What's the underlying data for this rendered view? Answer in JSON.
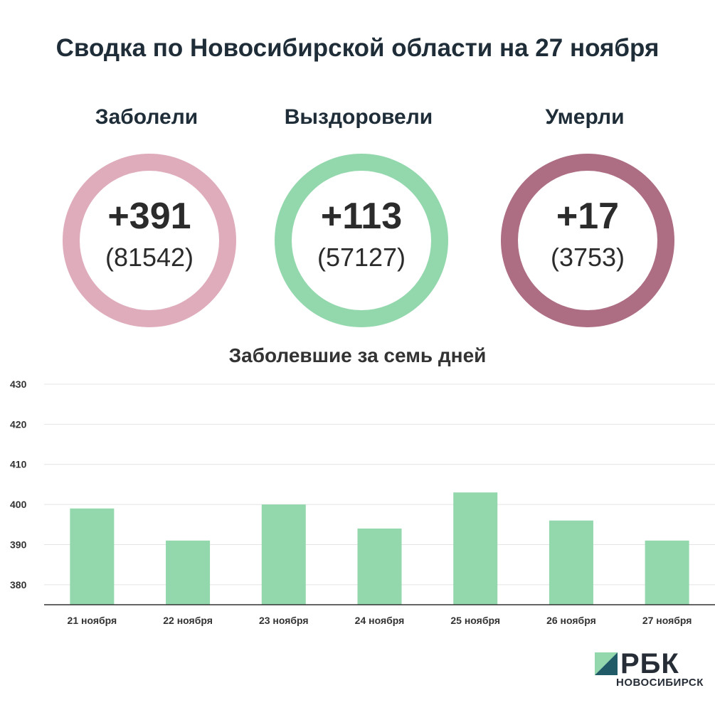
{
  "title": "Сводка по Новосибирской области на 27 ноября",
  "stats": [
    {
      "label": "Заболели",
      "delta": "+391",
      "total": "(81542)",
      "color": "#dfacbb"
    },
    {
      "label": "Выздоровели",
      "delta": "+113",
      "total": "(57127)",
      "color": "#93d7ad"
    },
    {
      "label": "Умерли",
      "delta": "+17",
      "total": "(3753)",
      "color": "#ad6e83"
    }
  ],
  "chart_data": {
    "type": "bar",
    "title": "Заболевшие за семь дней",
    "categories": [
      "21 ноября",
      "22 ноября",
      "23 ноября",
      "24 ноября",
      "25 ноября",
      "26 ноября",
      "27 ноября"
    ],
    "values": [
      399,
      391,
      400,
      394,
      403,
      396,
      391
    ],
    "yticks": [
      380,
      390,
      400,
      410,
      420,
      430
    ],
    "ylim": [
      375,
      430
    ],
    "bar_color": "#93d7ad",
    "grid": true
  },
  "logo": {
    "name": "РБК",
    "subtitle": "НОВОСИБИРСК",
    "mark_colors": [
      "#93d7ad",
      "#1f5a66"
    ]
  }
}
